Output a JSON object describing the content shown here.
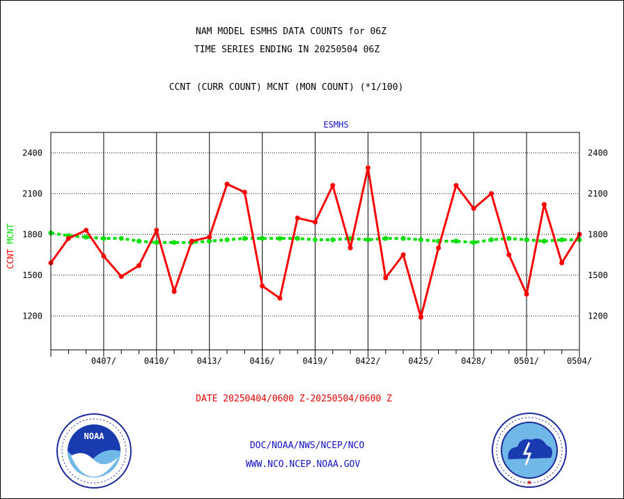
{
  "header": {
    "title_line1": "NAM MODEL ESMHS DATA COUNTS for 06Z",
    "title_line2": "TIME SERIES ENDING IN 20250504 06Z",
    "subtitle": "CCNT (CURR COUNT) MCNT (MON COUNT) (*1/100)"
  },
  "footer": {
    "date_range": "DATE 20250404/0600 Z-20250504/0600 Z",
    "org_line1": "DOC/NOAA/NWS/NCEP/NCO",
    "org_line2": "WWW.NCO.NCEP.NOAA.GOV"
  },
  "logos": {
    "left": "NOAA",
    "right": "NATIONAL WEATHER SERVICE"
  },
  "colors": {
    "ccnt": "#ff0000",
    "mcnt": "#00e000",
    "title_blue": "#1010c8",
    "date_red": "#e00000"
  },
  "chart_data": {
    "type": "line",
    "title": "ESMHS",
    "ylabel_ccnt": "CCNT",
    "ylabel_mcnt": "MCNT",
    "ylim": [
      950,
      2550
    ],
    "yticks": [
      1200,
      1500,
      1800,
      2100,
      2400
    ],
    "xlim": [
      0,
      30
    ],
    "xticks": [
      {
        "pos": 3,
        "label": "0407/"
      },
      {
        "pos": 6,
        "label": "0410/"
      },
      {
        "pos": 9,
        "label": "0413/"
      },
      {
        "pos": 12,
        "label": "0416/"
      },
      {
        "pos": 15,
        "label": "0419/"
      },
      {
        "pos": 18,
        "label": "0422/"
      },
      {
        "pos": 21,
        "label": "0425/"
      },
      {
        "pos": 24,
        "label": "0428/"
      },
      {
        "pos": 27,
        "label": "0501/"
      },
      {
        "pos": 30,
        "label": "0504/"
      }
    ],
    "grid": true,
    "series": [
      {
        "name": "CCNT",
        "values": [
          1590,
          1770,
          1830,
          1640,
          1490,
          1570,
          1830,
          1380,
          1750,
          1780,
          2170,
          2110,
          1420,
          1330,
          1920,
          1890,
          2160,
          1700,
          2290,
          1480,
          1650,
          1190,
          1700,
          2160,
          1990,
          2100,
          1650,
          1360,
          2020,
          1590,
          1800
        ]
      },
      {
        "name": "MCNT",
        "values": [
          1810,
          1790,
          1780,
          1770,
          1770,
          1750,
          1740,
          1740,
          1740,
          1750,
          1760,
          1770,
          1770,
          1770,
          1770,
          1760,
          1760,
          1770,
          1760,
          1770,
          1770,
          1760,
          1750,
          1750,
          1740,
          1760,
          1770,
          1760,
          1750,
          1760,
          1760
        ]
      }
    ]
  }
}
